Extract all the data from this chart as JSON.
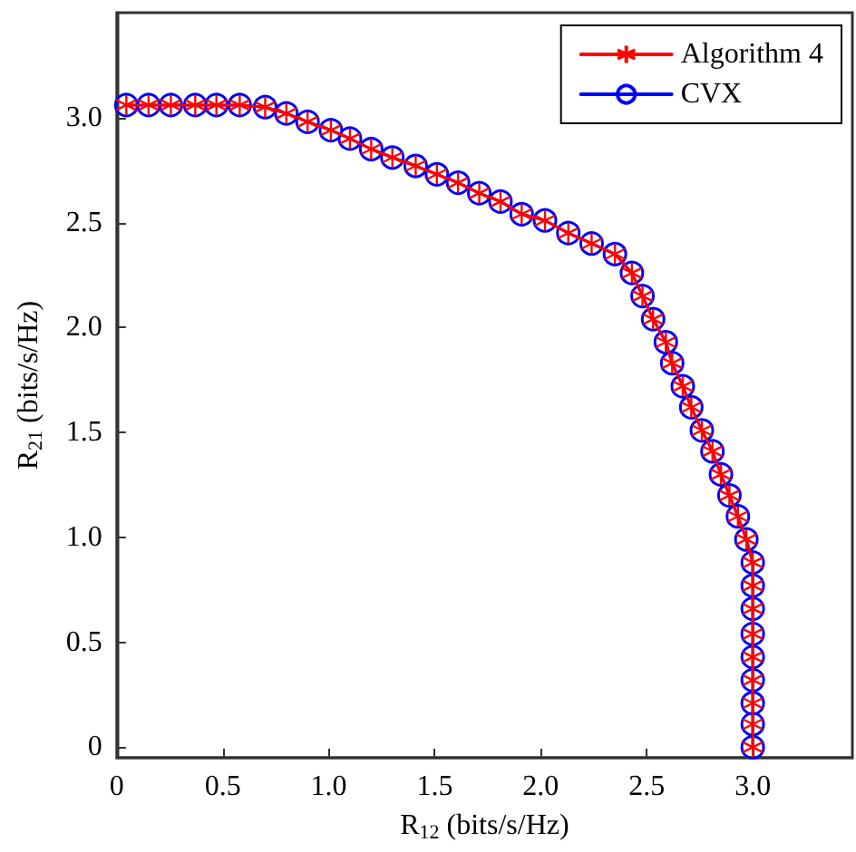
{
  "chart_data": {
    "type": "line",
    "xlabel": "R$_{12}$ (bits/s/Hz)",
    "ylabel": "R$_{21}$ (bits/s/Hz)",
    "x": [
      0.045,
      0.15,
      0.255,
      0.37,
      0.47,
      0.58,
      0.7,
      0.8,
      0.9,
      1.01,
      1.1,
      1.2,
      1.3,
      1.41,
      1.51,
      1.61,
      1.71,
      1.81,
      1.91,
      2.02,
      2.13,
      2.24,
      2.35,
      2.43,
      2.48,
      2.53,
      2.59,
      2.62,
      2.67,
      2.71,
      2.76,
      2.81,
      2.85,
      2.89,
      2.93,
      2.97,
      3.0,
      3.0,
      3.0,
      3.0,
      3.0,
      3.0,
      3.0,
      3.0,
      3.0
    ],
    "series": [
      {
        "name": "Algorithm 4",
        "color": "#ff0000",
        "marker": "cross",
        "values": [
          3.06,
          3.06,
          3.06,
          3.06,
          3.06,
          3.06,
          3.05,
          3.02,
          2.98,
          2.94,
          2.9,
          2.85,
          2.81,
          2.77,
          2.73,
          2.69,
          2.64,
          2.6,
          2.54,
          2.51,
          2.45,
          2.4,
          2.35,
          2.26,
          2.15,
          2.04,
          1.93,
          1.83,
          1.72,
          1.62,
          1.51,
          1.41,
          1.3,
          1.2,
          1.1,
          0.99,
          0.88,
          0.77,
          0.66,
          0.54,
          0.43,
          0.32,
          0.21,
          0.11,
          0
        ]
      },
      {
        "name": "CVX",
        "color": "#0000ff",
        "marker": "circle",
        "values": [
          3.06,
          3.06,
          3.06,
          3.06,
          3.06,
          3.06,
          3.05,
          3.02,
          2.98,
          2.94,
          2.9,
          2.85,
          2.81,
          2.77,
          2.73,
          2.69,
          2.64,
          2.6,
          2.54,
          2.51,
          2.45,
          2.4,
          2.35,
          2.26,
          2.15,
          2.04,
          1.93,
          1.83,
          1.72,
          1.62,
          1.51,
          1.41,
          1.3,
          1.2,
          1.1,
          0.99,
          0.88,
          0.77,
          0.66,
          0.54,
          0.43,
          0.32,
          0.21,
          0.11,
          0
        ]
      }
    ],
    "xlim": [
      0,
      3.47
    ],
    "ylim": [
      -0.05,
      3.5
    ],
    "xticks": [
      0,
      0.5,
      {
        "value": 1,
        "label": "1.0"
      },
      1.5,
      {
        "value": 2,
        "label": "2.0"
      },
      2.5,
      {
        "value": 3,
        "label": "3.0"
      }
    ],
    "yticks": [
      0,
      0.5,
      {
        "value": 1,
        "label": "1.0"
      },
      1.5,
      {
        "value": 2,
        "label": "2.0"
      },
      2.5,
      {
        "value": 3,
        "label": "3.0"
      }
    ],
    "grid": false,
    "legend": "top right",
    "line_style": "solid"
  }
}
